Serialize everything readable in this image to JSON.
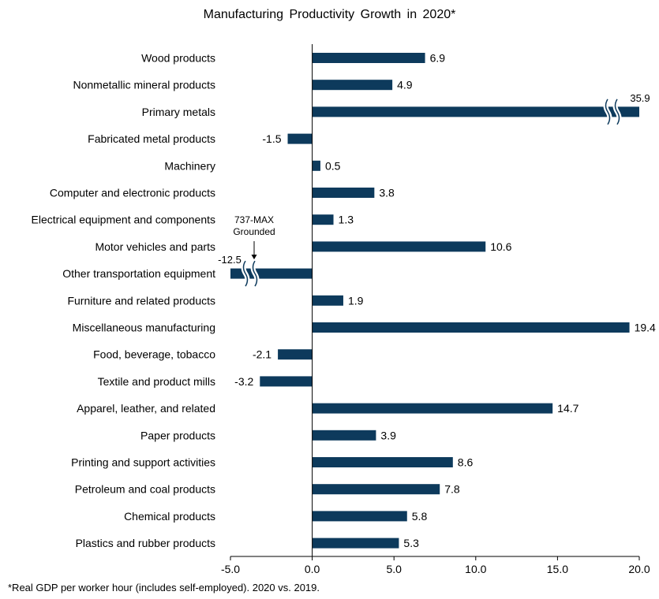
{
  "chart_data": {
    "type": "bar",
    "orientation": "horizontal",
    "title": "Manufacturing  Productivity Growth in 2020*",
    "footnote": "*Real GDP per worker hour (includes self-employed). 2020 vs. 2019.",
    "categories": [
      "Wood products",
      "Nonmetallic mineral products",
      "Primary metals",
      "Fabricated metal products",
      "Machinery",
      "Computer and electronic products",
      "Electrical equipment and components",
      "Motor vehicles and parts",
      "Other transportation equipment",
      "Furniture and related products",
      "Miscellaneous manufacturing",
      "Food, beverage, tobacco",
      "Textile and product mills",
      "Apparel,  leather, and related",
      "Paper products",
      "Printing and support activities",
      "Petroleum and coal products",
      "Chemical products",
      "Plastics and rubber products"
    ],
    "values": [
      6.9,
      4.9,
      35.9,
      -1.5,
      0.5,
      3.8,
      1.3,
      10.6,
      -12.5,
      1.9,
      19.4,
      -2.1,
      -3.2,
      14.7,
      3.9,
      8.6,
      7.8,
      5.8,
      5.3
    ],
    "value_labels": [
      "6.9",
      "4.9",
      "35.9",
      "-1.5",
      "0.5",
      "3.8",
      "1.3",
      "10.6",
      "-12.5",
      "1.9",
      "19.4",
      "-2.1",
      "-3.2",
      "14.7",
      "3.9",
      "8.6",
      "7.8",
      "5.8",
      "5.3"
    ],
    "xlim": [
      -5,
      20
    ],
    "xticks": [
      -5,
      0,
      5,
      10,
      15,
      20
    ],
    "xtick_labels": [
      "-5.0",
      "0.0",
      "5.0",
      "10.0",
      "15.0",
      "20.0"
    ],
    "broken_bars": [
      "Primary metals",
      "Other transportation equipment"
    ],
    "annotations": [
      {
        "text": "737-MAX Grounded",
        "lines": [
          "737-MAX",
          "Grounded"
        ],
        "target": "Other transportation equipment"
      }
    ],
    "bar_color": "#0d3a5c",
    "grid": false
  }
}
